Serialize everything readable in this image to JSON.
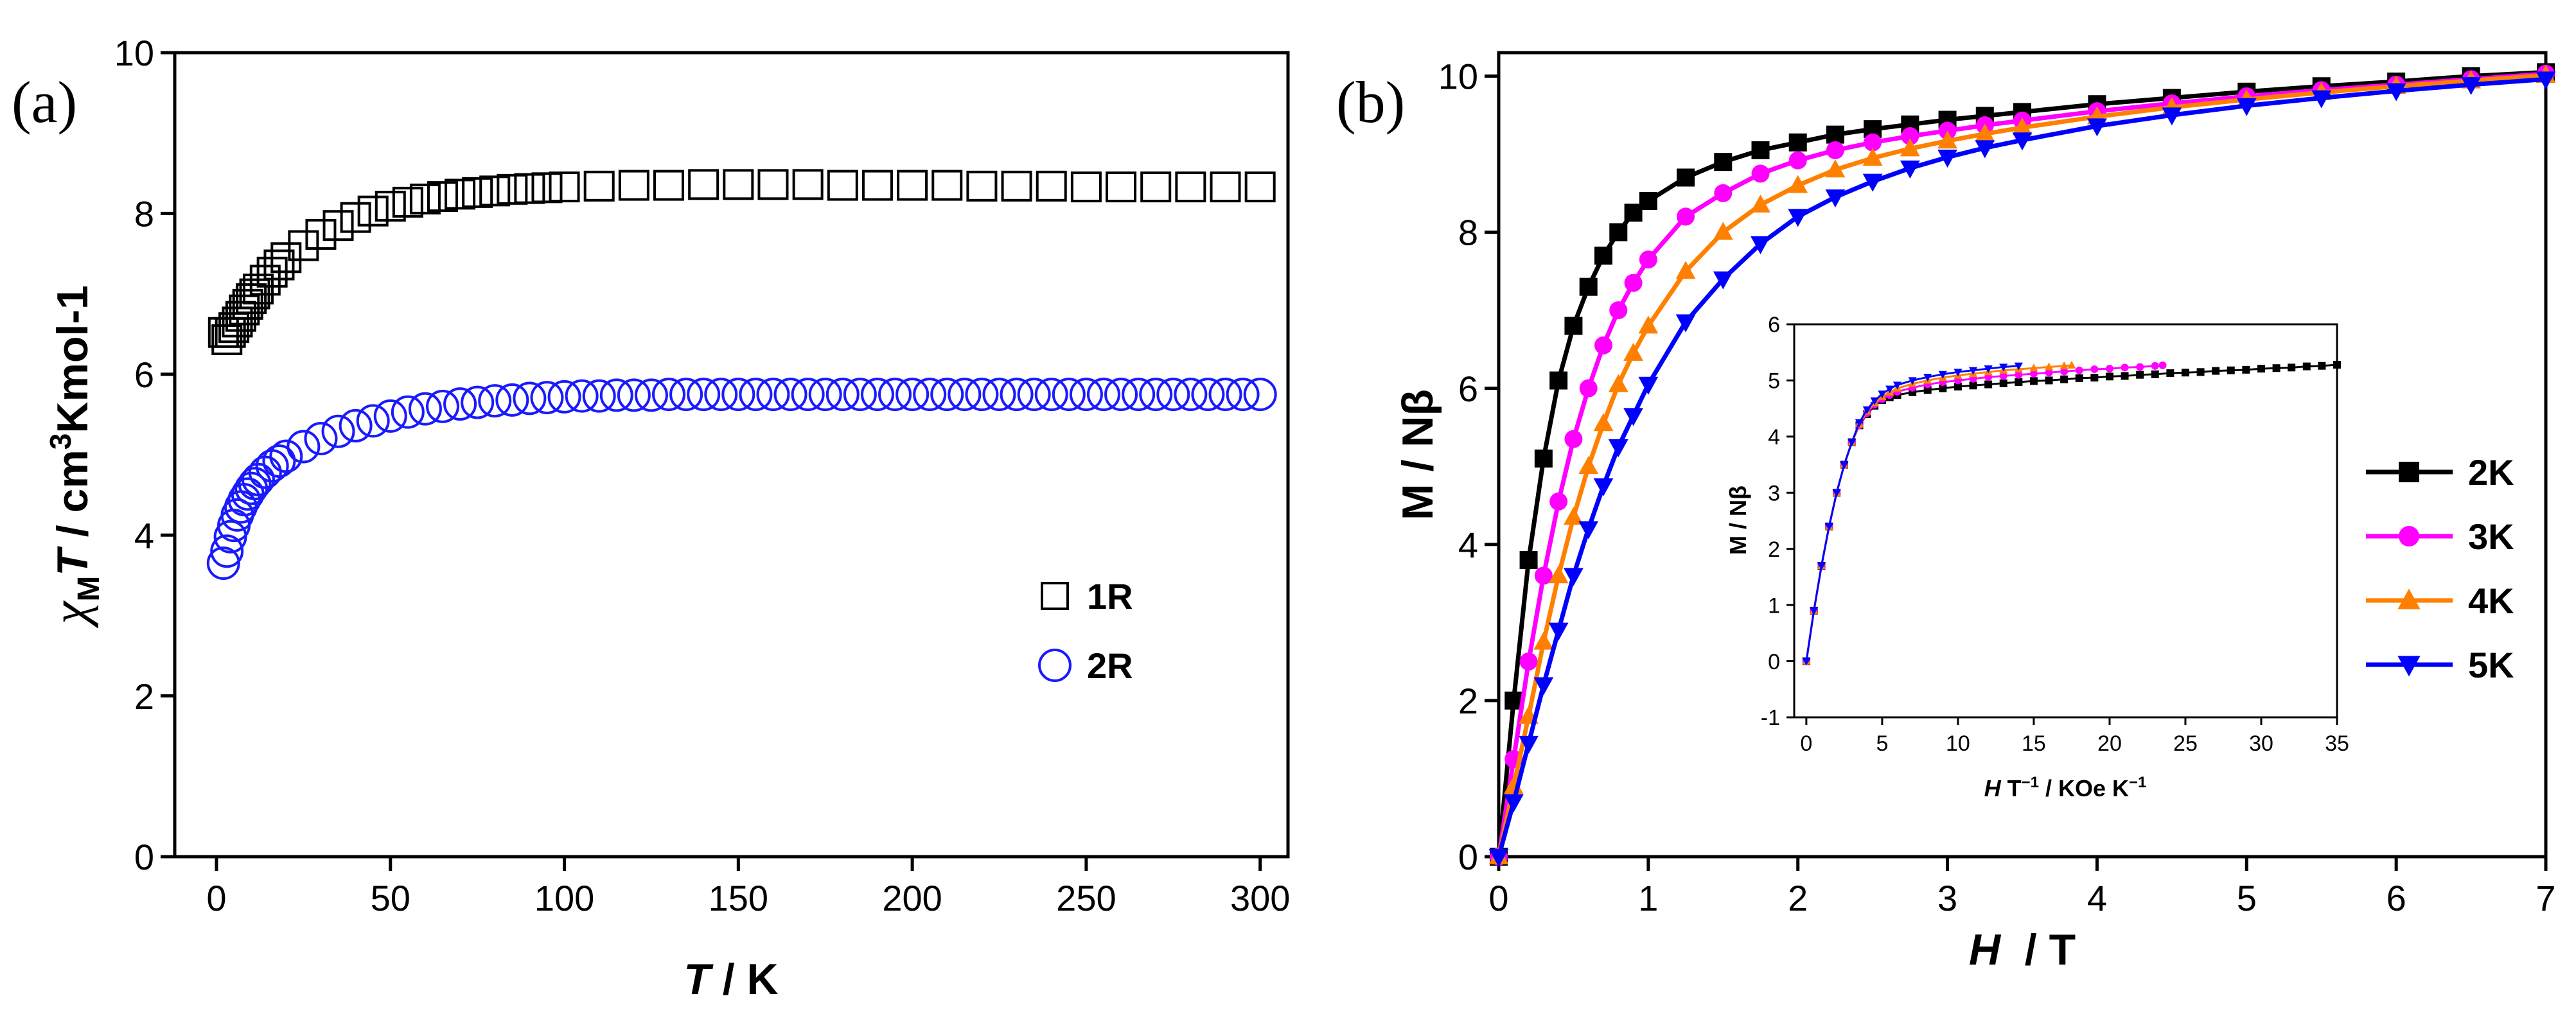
{
  "panels": {
    "a": "(a)",
    "b": "(b)"
  },
  "axis_text": {
    "a_ylabel": {
      "chi": "χ",
      "sub": "M",
      "T": "T",
      "unit": " / cm",
      "exp": "3",
      "rest": "Kmol-1"
    },
    "a_xlabel": {
      "T": "T",
      "rest": " / K"
    },
    "b_ylabel": "M / Nβ",
    "b_xlabel": {
      "H": "H",
      "rest": "  / T"
    },
    "inset_ylabel": "M / Nβ",
    "inset_xlabel": {
      "H": "H",
      "T": " T",
      "exp1": "−1",
      "mid": " / KOe K",
      "exp2": "−1"
    }
  },
  "chart_data": [
    {
      "id": "a",
      "type": "scatter",
      "xlabel": "T / K",
      "ylabel": "χMT / cm3Kmol-1",
      "xlim": [
        -12,
        308
      ],
      "ylim": [
        0,
        10
      ],
      "xticks": [
        0,
        50,
        100,
        150,
        200,
        250,
        300
      ],
      "yticks": [
        0,
        2,
        4,
        6,
        8,
        10
      ],
      "legend_position": "lower-right",
      "series": [
        {
          "name": "1R",
          "marker": "square",
          "color": "#000000",
          "x": [
            2,
            3,
            4,
            5,
            6,
            7,
            8,
            9,
            10,
            11,
            12,
            14,
            16,
            18,
            20,
            25,
            30,
            35,
            40,
            45,
            50,
            55,
            60,
            65,
            70,
            75,
            80,
            85,
            90,
            95,
            100,
            110,
            120,
            130,
            140,
            150,
            160,
            170,
            180,
            190,
            200,
            210,
            220,
            230,
            240,
            250,
            260,
            270,
            280,
            290,
            300
          ],
          "y": [
            6.52,
            6.43,
            6.52,
            6.58,
            6.65,
            6.72,
            6.8,
            6.87,
            6.94,
            7.0,
            7.06,
            7.17,
            7.27,
            7.36,
            7.45,
            7.6,
            7.74,
            7.85,
            7.95,
            8.03,
            8.09,
            8.14,
            8.18,
            8.21,
            8.24,
            8.26,
            8.28,
            8.3,
            8.31,
            8.32,
            8.33,
            8.34,
            8.35,
            8.35,
            8.36,
            8.36,
            8.36,
            8.36,
            8.35,
            8.35,
            8.35,
            8.35,
            8.34,
            8.34,
            8.34,
            8.33,
            8.33,
            8.33,
            8.33,
            8.33,
            8.33
          ]
        },
        {
          "name": "2R",
          "marker": "circle",
          "color": "#1a1aff",
          "x": [
            2,
            3,
            4,
            5,
            6,
            7,
            8,
            9,
            10,
            11,
            12,
            14,
            16,
            18,
            20,
            25,
            30,
            35,
            40,
            45,
            50,
            55,
            60,
            65,
            70,
            75,
            80,
            85,
            90,
            95,
            100,
            105,
            110,
            115,
            120,
            125,
            130,
            135,
            140,
            145,
            150,
            155,
            160,
            165,
            170,
            175,
            180,
            185,
            190,
            195,
            200,
            205,
            210,
            215,
            220,
            225,
            230,
            235,
            240,
            245,
            250,
            255,
            260,
            265,
            270,
            275,
            280,
            285,
            290,
            295,
            300
          ],
          "y": [
            3.65,
            3.8,
            3.98,
            4.12,
            4.25,
            4.35,
            4.44,
            4.51,
            4.58,
            4.64,
            4.69,
            4.78,
            4.86,
            4.92,
            4.98,
            5.1,
            5.2,
            5.29,
            5.36,
            5.42,
            5.48,
            5.53,
            5.57,
            5.6,
            5.63,
            5.65,
            5.67,
            5.68,
            5.7,
            5.71,
            5.72,
            5.73,
            5.73,
            5.74,
            5.74,
            5.74,
            5.75,
            5.75,
            5.75,
            5.75,
            5.75,
            5.75,
            5.75,
            5.75,
            5.75,
            5.75,
            5.75,
            5.75,
            5.75,
            5.75,
            5.75,
            5.75,
            5.75,
            5.75,
            5.75,
            5.75,
            5.75,
            5.75,
            5.75,
            5.75,
            5.75,
            5.75,
            5.75,
            5.75,
            5.75,
            5.75,
            5.75,
            5.75,
            5.75,
            5.75,
            5.75
          ]
        }
      ]
    },
    {
      "id": "b",
      "type": "line",
      "xlabel": "H / T",
      "ylabel": "M / Nβ",
      "xlim": [
        0,
        7
      ],
      "ylim": [
        0,
        10.3
      ],
      "xticks": [
        0,
        1,
        2,
        3,
        4,
        5,
        6,
        7
      ],
      "yticks": [
        0,
        2,
        4,
        6,
        8,
        10
      ],
      "legend_position": "right",
      "x": [
        0,
        0.1,
        0.2,
        0.3,
        0.4,
        0.5,
        0.6,
        0.7,
        0.8,
        0.9,
        1.0,
        1.25,
        1.5,
        1.75,
        2.0,
        2.25,
        2.5,
        2.75,
        3.0,
        3.25,
        3.5,
        4.0,
        4.5,
        5.0,
        5.5,
        6.0,
        6.5,
        7.0
      ],
      "series": [
        {
          "name": "2K",
          "marker": "square",
          "color": "#000000",
          "values": [
            0,
            2.0,
            3.8,
            5.1,
            6.1,
            6.8,
            7.3,
            7.7,
            8.0,
            8.25,
            8.4,
            8.7,
            8.9,
            9.05,
            9.15,
            9.25,
            9.32,
            9.38,
            9.44,
            9.49,
            9.54,
            9.64,
            9.72,
            9.8,
            9.87,
            9.93,
            10.0,
            10.05
          ]
        },
        {
          "name": "3K",
          "marker": "circle",
          "color": "#ff00ff",
          "values": [
            0,
            1.25,
            2.5,
            3.6,
            4.55,
            5.35,
            6.0,
            6.55,
            7.0,
            7.35,
            7.65,
            8.2,
            8.5,
            8.75,
            8.92,
            9.05,
            9.15,
            9.23,
            9.3,
            9.37,
            9.43,
            9.55,
            9.65,
            9.74,
            9.82,
            9.89,
            9.96,
            10.03
          ]
        },
        {
          "name": "4K",
          "marker": "triangle-up",
          "color": "#ff8000",
          "values": [
            0,
            0.9,
            1.8,
            2.75,
            3.6,
            4.35,
            5.0,
            5.55,
            6.05,
            6.45,
            6.8,
            7.5,
            8.0,
            8.35,
            8.6,
            8.8,
            8.95,
            9.07,
            9.17,
            9.26,
            9.34,
            9.48,
            9.6,
            9.7,
            9.79,
            9.87,
            9.94,
            10.01
          ]
        },
        {
          "name": "5K",
          "marker": "triangle-down",
          "color": "#0000ff",
          "values": [
            0,
            0.7,
            1.45,
            2.2,
            2.9,
            3.6,
            4.2,
            4.75,
            5.25,
            5.65,
            6.05,
            6.85,
            7.4,
            7.85,
            8.2,
            8.45,
            8.65,
            8.82,
            8.96,
            9.08,
            9.18,
            9.36,
            9.5,
            9.62,
            9.72,
            9.81,
            9.89,
            9.96
          ]
        }
      ]
    },
    {
      "id": "b-inset",
      "type": "line",
      "xlabel": "H T−1 / KOe K−1",
      "ylabel": "M / Nβ",
      "xlim": [
        -0.8,
        35
      ],
      "ylim": [
        -1,
        6
      ],
      "xticks": [
        0,
        5,
        10,
        15,
        20,
        25,
        30,
        35
      ],
      "yticks": [
        -1,
        0,
        1,
        2,
        3,
        4,
        5,
        6
      ],
      "series": [
        {
          "name": "2K",
          "marker": "square",
          "color": "#000000",
          "x": [
            0,
            0.5,
            1,
            1.5,
            2,
            2.5,
            3,
            3.5,
            4,
            4.5,
            5,
            5.5,
            6,
            7,
            8,
            9,
            10,
            11,
            12,
            13,
            14,
            15,
            16,
            17,
            18,
            19,
            20,
            21,
            22,
            23,
            24,
            25,
            26,
            27,
            28,
            29,
            30,
            31,
            32,
            33,
            34,
            35
          ],
          "y": [
            0,
            0.9,
            1.7,
            2.4,
            3.0,
            3.5,
            3.9,
            4.2,
            4.4,
            4.55,
            4.65,
            4.7,
            4.74,
            4.79,
            4.83,
            4.86,
            4.89,
            4.91,
            4.93,
            4.95,
            4.97,
            4.99,
            5.0,
            5.02,
            5.04,
            5.05,
            5.07,
            5.08,
            5.1,
            5.11,
            5.13,
            5.14,
            5.15,
            5.17,
            5.18,
            5.19,
            5.21,
            5.22,
            5.23,
            5.25,
            5.26,
            5.28
          ]
        },
        {
          "name": "3K",
          "marker": "circle",
          "color": "#ff00ff",
          "x": [
            0,
            0.5,
            1,
            1.5,
            2,
            2.5,
            3,
            3.5,
            4,
            4.5,
            5,
            5.5,
            6,
            7,
            8,
            9,
            10,
            11,
            12,
            13,
            14,
            15,
            16,
            17,
            18,
            19,
            20,
            21,
            22,
            23,
            23.5
          ],
          "y": [
            0,
            0.9,
            1.7,
            2.4,
            3.0,
            3.5,
            3.9,
            4.2,
            4.42,
            4.57,
            4.67,
            4.74,
            4.8,
            4.87,
            4.93,
            4.97,
            5.0,
            5.03,
            5.06,
            5.08,
            5.1,
            5.12,
            5.14,
            5.16,
            5.18,
            5.2,
            5.21,
            5.23,
            5.24,
            5.26,
            5.27
          ]
        },
        {
          "name": "4K",
          "marker": "triangle-up",
          "color": "#ff8000",
          "x": [
            0,
            0.5,
            1,
            1.5,
            2,
            2.5,
            3,
            3.5,
            4,
            4.5,
            5,
            5.5,
            6,
            7,
            8,
            9,
            10,
            11,
            12,
            13,
            14,
            15,
            16,
            17,
            17.5
          ],
          "y": [
            0,
            0.9,
            1.7,
            2.4,
            3.0,
            3.5,
            3.9,
            4.22,
            4.45,
            4.6,
            4.71,
            4.79,
            4.86,
            4.94,
            5.0,
            5.05,
            5.09,
            5.12,
            5.15,
            5.18,
            5.2,
            5.22,
            5.24,
            5.26,
            5.27
          ]
        },
        {
          "name": "5K",
          "marker": "triangle-down",
          "color": "#0000ff",
          "x": [
            0,
            0.5,
            1,
            1.5,
            2,
            2.5,
            3,
            3.5,
            4,
            4.5,
            5,
            5.5,
            6,
            7,
            8,
            9,
            10,
            11,
            12,
            13,
            14
          ],
          "y": [
            0,
            0.9,
            1.7,
            2.4,
            3.0,
            3.5,
            3.9,
            4.25,
            4.48,
            4.64,
            4.76,
            4.85,
            4.92,
            5.0,
            5.06,
            5.11,
            5.15,
            5.18,
            5.21,
            5.24,
            5.26
          ]
        }
      ]
    }
  ]
}
